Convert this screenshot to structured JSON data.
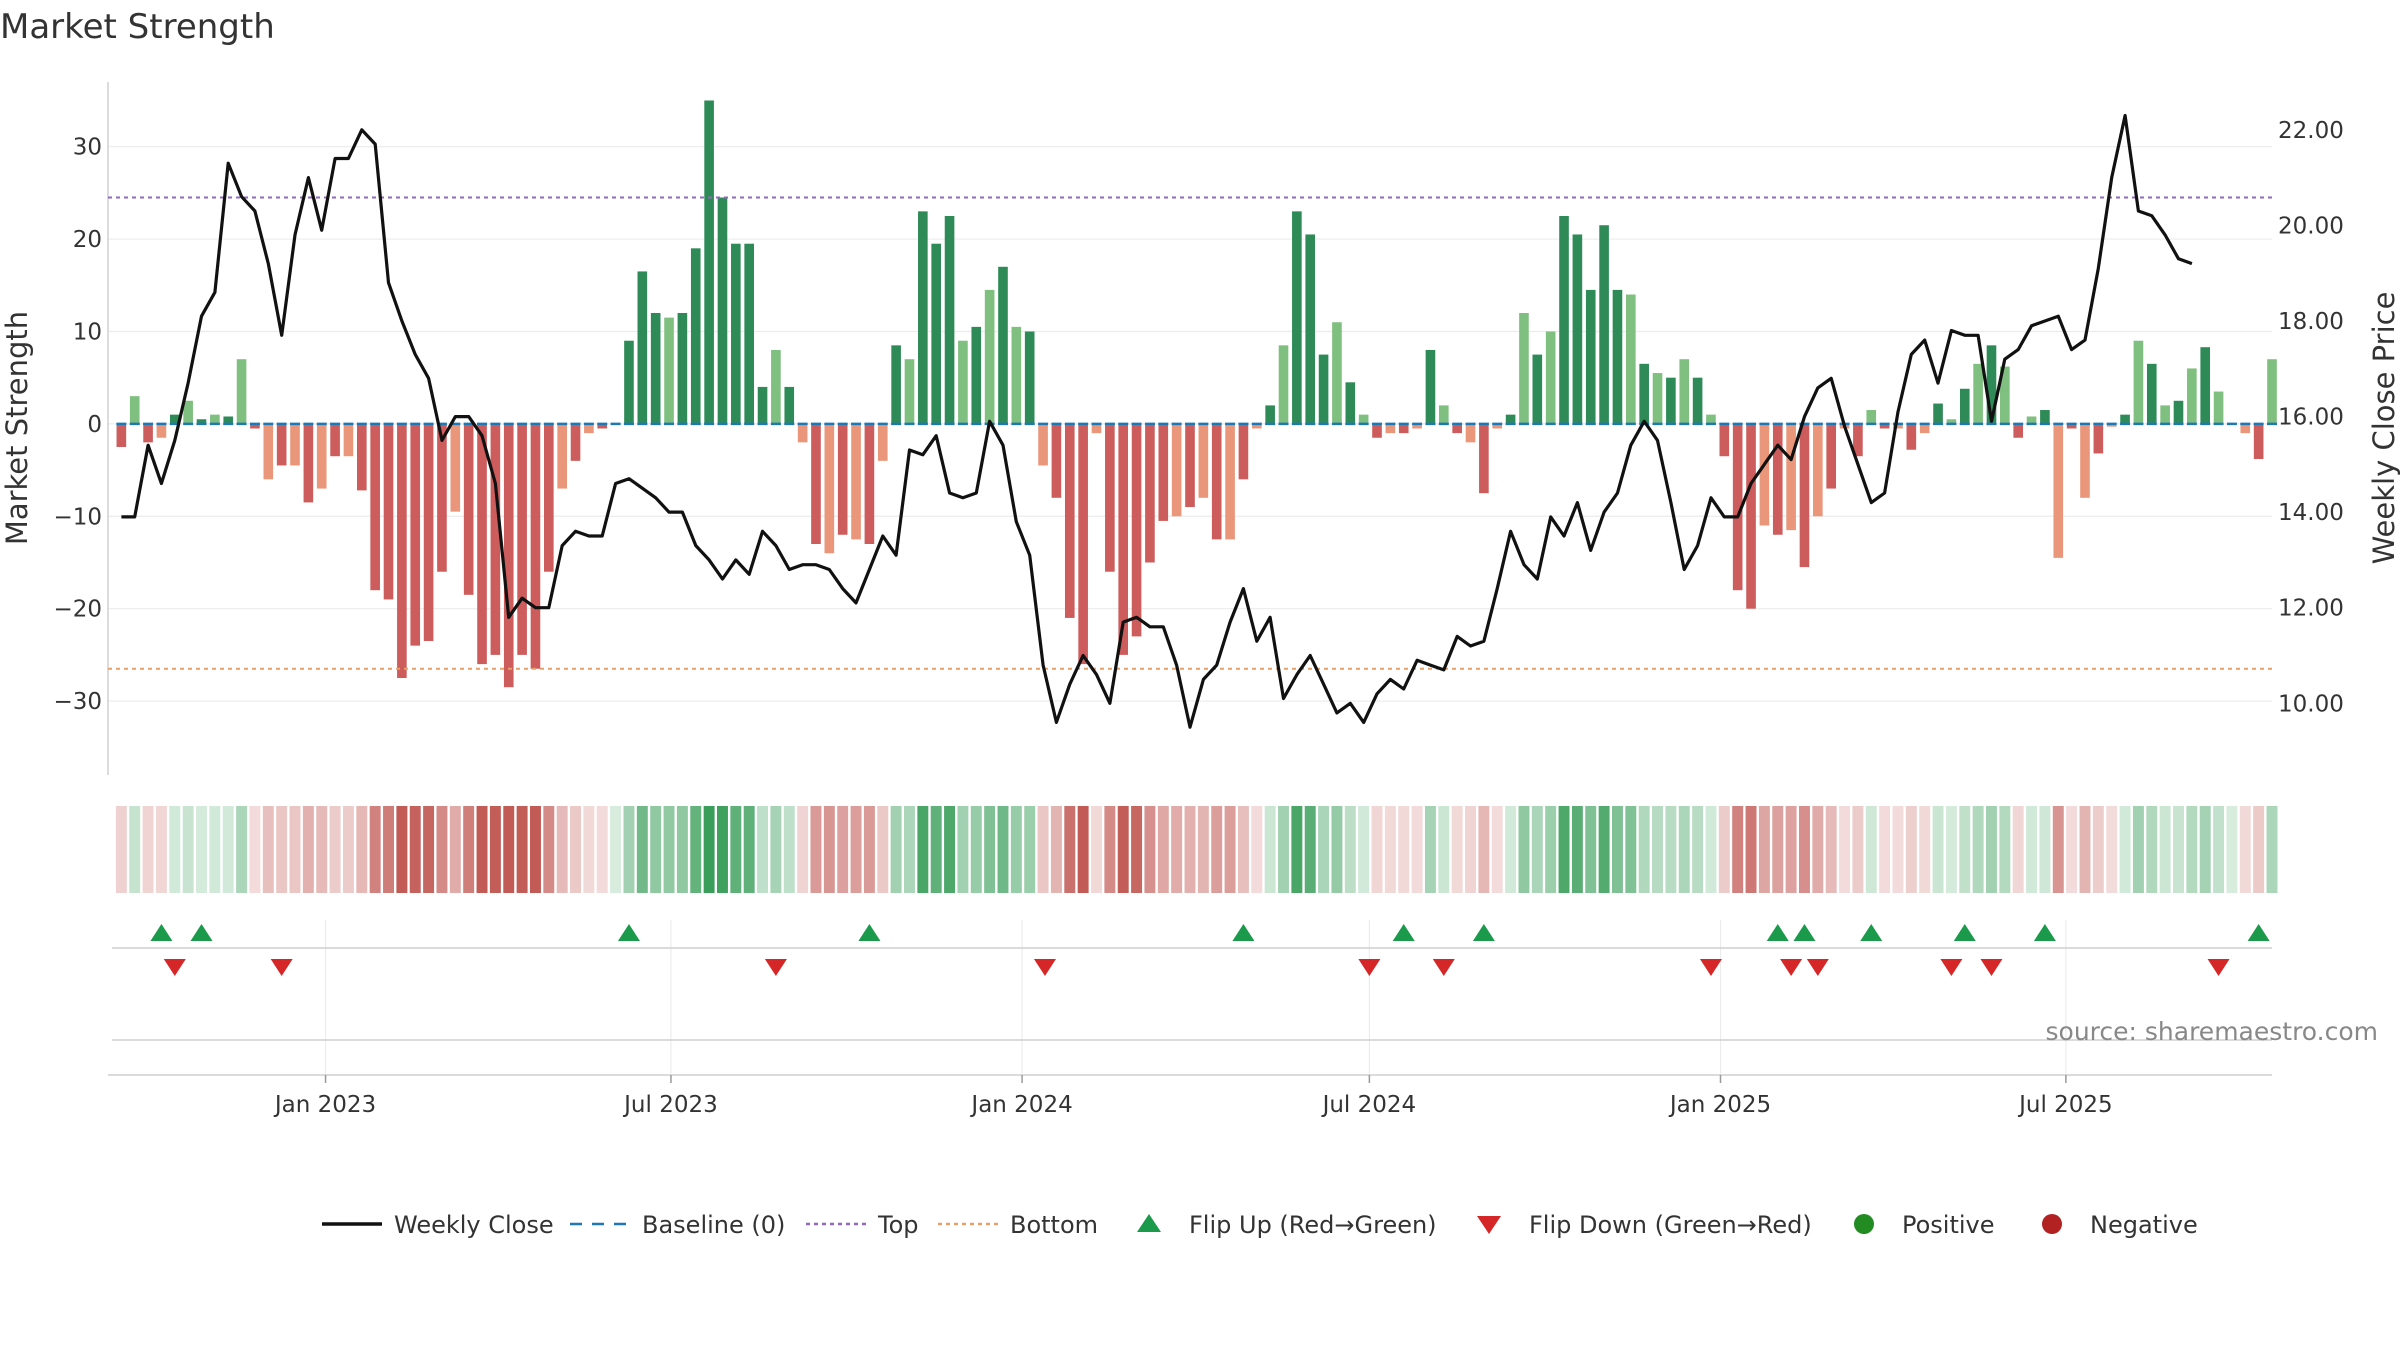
{
  "chart_data": {
    "type": "bar+line",
    "title": "Market Strength",
    "ylabel_left": "Market Strength",
    "ylabel_right": "Weekly Close Price",
    "ylim_left": [
      -38,
      37
    ],
    "yticks_left": [
      30,
      20,
      10,
      0,
      -10,
      -20,
      -30
    ],
    "ylim_right": [
      8.5,
      23.0
    ],
    "yticks_right": [
      "22.00",
      "20.00",
      "18.00",
      "16.00",
      "14.00",
      "12.00",
      "10.00"
    ],
    "xlim": [
      "2022-09-09",
      "2025-10-17"
    ],
    "x_start": "2022-09-16",
    "x_step_days": 7,
    "x_ticks": [
      {
        "date": "2023-01-01",
        "label": "Jan 2023"
      },
      {
        "date": "2023-07-01",
        "label": "Jul 2023"
      },
      {
        "date": "2024-01-01",
        "label": "Jan 2024"
      },
      {
        "date": "2024-07-01",
        "label": "Jul 2024"
      },
      {
        "date": "2025-01-01",
        "label": "Jan 2025"
      },
      {
        "date": "2025-07-01",
        "label": "Jul 2025"
      }
    ],
    "top_line": 24.5,
    "bottom_line": -26.5,
    "baseline": 0,
    "strength": [
      -2.5,
      3,
      -2,
      -1.5,
      1,
      2.5,
      0.5,
      1,
      0.8,
      7,
      -0.5,
      -6,
      -4.5,
      -4.5,
      -8.5,
      -7,
      -3.5,
      -3.5,
      -7.2,
      -18,
      -19,
      -27.5,
      -24,
      -23.5,
      -16,
      -9.5,
      -18.5,
      -26,
      -25,
      -28.5,
      -25,
      -26.5,
      -16,
      -7,
      -4,
      -1,
      -0.5,
      0,
      9,
      16.5,
      12,
      11.5,
      12,
      19,
      35,
      24.5,
      19.5,
      19.5,
      4,
      8,
      4,
      -2,
      -13,
      -14,
      -12,
      -12.5,
      -13,
      -4,
      8.5,
      7,
      23,
      19.5,
      22.5,
      9,
      10.5,
      14.5,
      17,
      10.5,
      10,
      -4.5,
      -8,
      -21,
      -26,
      -1,
      -16,
      -25,
      -23,
      -15,
      -10.5,
      -10,
      -9,
      -8,
      -12.5,
      -12.5,
      -6,
      -0.5,
      2,
      8.5,
      23,
      20.5,
      7.5,
      11,
      4.5,
      1,
      -1.5,
      -1,
      -1,
      -0.5,
      8,
      2,
      -1,
      -2,
      -7.5,
      -0.5,
      1,
      12,
      7.5,
      10,
      22.5,
      20.5,
      14.5,
      21.5,
      14.5,
      14,
      6.5,
      5.5,
      5,
      7,
      5,
      1,
      -3.5,
      -18,
      -20,
      -11,
      -12,
      -11.5,
      -15.5,
      -10,
      -7,
      -0.5,
      -3.5,
      1.5,
      -0.5,
      -0.5,
      -2.8,
      -1,
      2.2,
      0.5,
      3.8,
      6.5,
      8.5,
      6.2,
      -1.5,
      0.8,
      1.5,
      -14.5,
      -0.5,
      -8,
      -3.2,
      -0.3,
      1,
      9,
      6.5,
      2,
      2.5,
      6,
      8.3,
      3.5,
      0.1,
      -1,
      -3.8,
      7
    ],
    "close": [
      13.9,
      13.9,
      15.4,
      14.6,
      15.5,
      16.7,
      18.1,
      18.6,
      21.3,
      20.6,
      20.3,
      19.2,
      17.7,
      19.8,
      21.0,
      19.9,
      21.4,
      21.4,
      22.0,
      21.7,
      18.8,
      18.0,
      17.3,
      16.8,
      15.5,
      16.0,
      16.0,
      15.6,
      14.6,
      11.8,
      12.2,
      12.0,
      12.0,
      13.3,
      13.6,
      13.5,
      13.5,
      14.6,
      14.7,
      14.5,
      14.3,
      14.0,
      14.0,
      13.3,
      13.0,
      12.6,
      13.0,
      12.7,
      13.6,
      13.3,
      12.8,
      12.9,
      12.9,
      12.8,
      12.4,
      12.1,
      12.8,
      13.5,
      13.1,
      15.3,
      15.2,
      15.6,
      14.4,
      14.3,
      14.4,
      15.9,
      15.4,
      13.8,
      13.1,
      10.8,
      9.6,
      10.4,
      11.0,
      10.6,
      10.0,
      11.7,
      11.8,
      11.6,
      11.6,
      10.8,
      9.5,
      10.5,
      10.8,
      11.7,
      12.4,
      11.3,
      11.8,
      10.1,
      10.6,
      11.0,
      10.4,
      9.8,
      10.0,
      9.6,
      10.2,
      10.5,
      10.3,
      10.9,
      10.8,
      10.7,
      11.4,
      11.2,
      11.3,
      12.4,
      13.6,
      12.9,
      12.6,
      13.9,
      13.5,
      14.2,
      13.2,
      14.0,
      14.4,
      15.4,
      15.9,
      15.5,
      14.2,
      12.8,
      13.3,
      14.3,
      13.9,
      13.9,
      14.6,
      15.0,
      15.4,
      15.1,
      16.0,
      16.6,
      16.8,
      15.8,
      15.0,
      14.2,
      14.4,
      16.1,
      17.3,
      17.6,
      16.7,
      17.8,
      17.7,
      17.7,
      15.9,
      17.2,
      17.4,
      17.9,
      18.0,
      18.1,
      17.4,
      17.6,
      19.1,
      21.0,
      22.3,
      20.3,
      20.2,
      19.8,
      19.3,
      19.2
    ],
    "flip_up_dates": [
      "2022-10-07",
      "2022-10-28",
      "2023-06-09",
      "2023-10-13",
      "2024-04-26",
      "2024-07-19",
      "2024-08-30",
      "2025-01-31",
      "2025-02-14",
      "2025-03-21",
      "2025-05-09",
      "2025-06-20",
      "2025-10-10"
    ],
    "flip_down_dates": [
      "2022-10-14",
      "2022-12-09",
      "2023-08-25",
      "2024-01-13",
      "2024-07-01",
      "2024-08-09",
      "2024-12-27",
      "2025-02-07",
      "2025-02-21",
      "2025-05-02",
      "2025-05-23",
      "2025-09-19"
    ],
    "legend": [
      {
        "label": "Weekly Close",
        "kind": "line",
        "color": "#111111"
      },
      {
        "label": "Baseline (0)",
        "kind": "dash",
        "color": "#1f77b4"
      },
      {
        "label": "Top",
        "kind": "dot",
        "color": "#9467bd"
      },
      {
        "label": "Bottom",
        "kind": "dot",
        "color": "#e8a06a"
      },
      {
        "label": "Flip Up (Red→Green)",
        "kind": "tri-up",
        "color": "#1a9a4a"
      },
      {
        "label": "Flip Down (Green→Red)",
        "kind": "tri-down",
        "color": "#d62728"
      },
      {
        "label": "Positive",
        "kind": "circle",
        "color": "#228b22"
      },
      {
        "label": "Negative",
        "kind": "circle",
        "color": "#b22222"
      }
    ],
    "source": "source: sharemaestro.com"
  },
  "colors": {
    "pos_strong": "#2e8b57",
    "pos_light": "#7fbf7f",
    "neg_strong": "#cd5c5c",
    "neg_light": "#e9967a",
    "close_line": "#111111",
    "baseline": "#1f77b4",
    "top": "#9467bd",
    "bottom": "#e8a06a",
    "flip_up": "#1a9a4a",
    "flip_down": "#d62728"
  }
}
